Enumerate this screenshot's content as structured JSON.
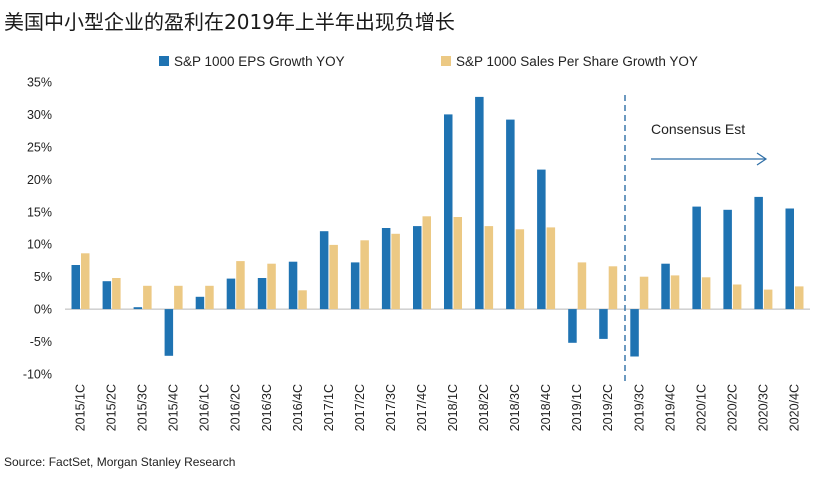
{
  "title": "美国中小型企业的盈利在2019年上半年出现负增长",
  "source": "Source: FactSet, Morgan Stanley Research",
  "chart_data": {
    "type": "bar",
    "categories": [
      "2015/1C",
      "2015/2C",
      "2015/3C",
      "2015/4C",
      "2016/1C",
      "2016/2C",
      "2016/3C",
      "2016/4C",
      "2017/1C",
      "2017/2C",
      "2017/3C",
      "2017/4C",
      "2018/1C",
      "2018/2C",
      "2018/3C",
      "2018/4C",
      "2019/1C",
      "2019/2C",
      "2019/3C",
      "2019/4C",
      "2020/1C",
      "2020/2C",
      "2020/3C",
      "2020/4C"
    ],
    "series": [
      {
        "name": "S&P 1000 EPS Growth YOY",
        "color": "#1f73b2",
        "values": [
          6.8,
          4.3,
          0.3,
          -7.2,
          1.9,
          4.7,
          4.8,
          7.3,
          12.0,
          7.2,
          12.5,
          12.8,
          30.0,
          32.7,
          29.2,
          21.5,
          null,
          null,
          null,
          7.0,
          15.8,
          15.3,
          17.3,
          15.5
        ],
        "negatives": {
          "16": -5.2,
          "17": -4.6,
          "18": -7.3
        }
      },
      {
        "name": "S&P 1000 Sales Per Share Growth YOY",
        "color": "#ecc984",
        "values": [
          8.6,
          4.8,
          3.6,
          3.6,
          3.6,
          7.4,
          7.0,
          2.9,
          9.9,
          10.6,
          11.6,
          14.3,
          14.2,
          12.8,
          12.3,
          12.6,
          7.2,
          6.6,
          5.0,
          5.2,
          4.9,
          3.8,
          3.0,
          3.5
        ]
      }
    ],
    "ylim": [
      -10,
      35
    ],
    "yticks": [
      -10,
      -5,
      0,
      5,
      10,
      15,
      20,
      25,
      30,
      35
    ],
    "ytick_labels": [
      "-10%",
      "-5%",
      "0%",
      "5%",
      "10%",
      "15%",
      "20%",
      "25%",
      "30%",
      "35%"
    ],
    "annotation": "Consensus Est",
    "legend_position": "top",
    "grid": false
  }
}
